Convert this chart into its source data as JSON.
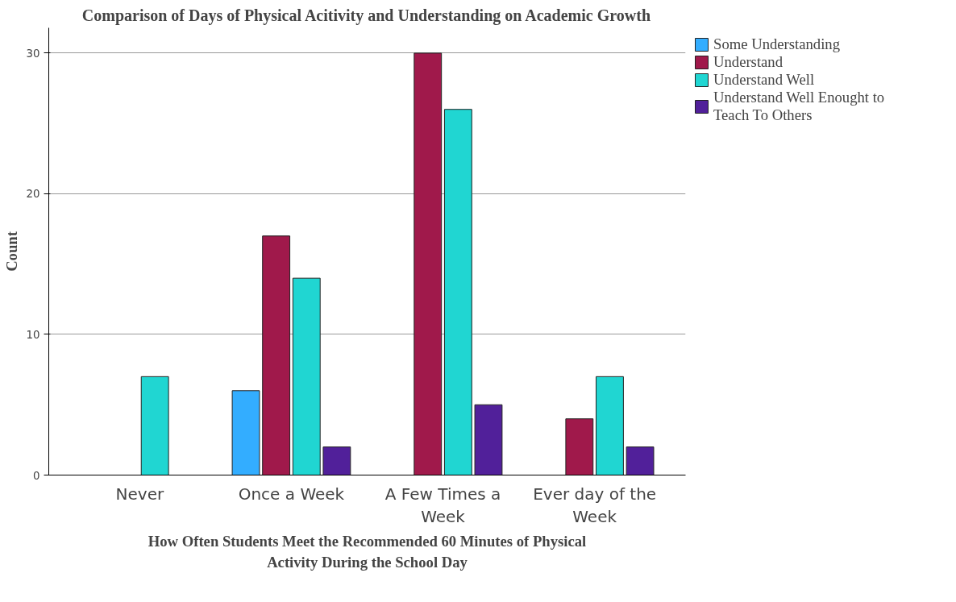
{
  "chart_data": {
    "type": "bar",
    "title": "Comparison of Days of Physical Acitivity and Understanding on Academic Growth",
    "xlabel": "How Often Students Meet the Recommended 60 Minutes of Physical Activity During the School Day",
    "ylabel": "Count",
    "categories": [
      "Never",
      "Once a Week",
      "A Few Times a Week",
      "Ever day of the Week"
    ],
    "series": [
      {
        "name": "Some Understanding",
        "color": "#33adff",
        "values": [
          null,
          6,
          null,
          null
        ]
      },
      {
        "name": "Understand",
        "color": "#a0194b",
        "values": [
          null,
          17,
          30,
          4
        ]
      },
      {
        "name": "Understand Well",
        "color": "#20d6d2",
        "values": [
          7,
          14,
          26,
          7
        ]
      },
      {
        "name": "Understand Well Enought to Teach To Others",
        "color": "#51209a",
        "values": [
          null,
          2,
          5,
          2
        ]
      }
    ],
    "ylim": [
      0,
      31.8
    ],
    "yticks": [
      0,
      10,
      20,
      30
    ],
    "grid": "y",
    "legend": "right"
  }
}
